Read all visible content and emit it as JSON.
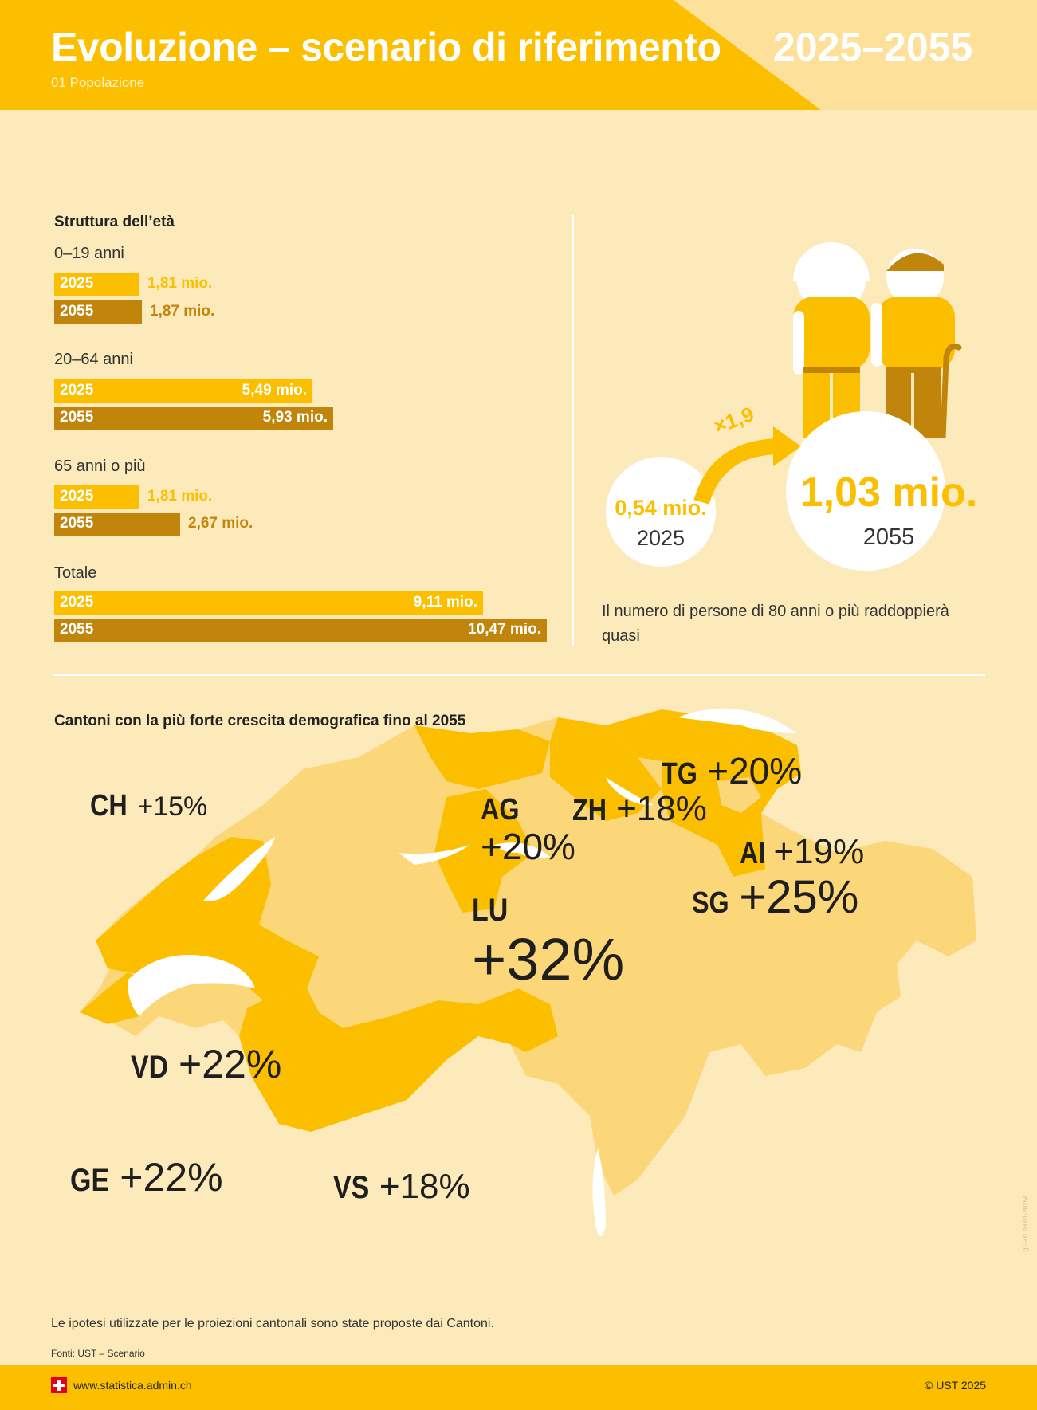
{
  "header": {
    "title": "Evoluzione – scenario di riferimento",
    "year_range": "2025–2055",
    "subtitle": "01 Popolazione"
  },
  "colors": {
    "year_2025": "#fbbf00",
    "year_2055": "#c0850a",
    "background": "#fdeabb",
    "canton_highlight": "#fbbf00",
    "canton_other": "#fcd77a",
    "lakes": "#ffffff"
  },
  "age_structure": {
    "title": "Struttura dell’età",
    "groups": [
      {
        "label": "0–19 anni",
        "label_2025": "2025",
        "value_2025": "1,81 mio.",
        "label_2055": "2055",
        "value_2055": "1,87 mio."
      },
      {
        "label": "20–64 anni",
        "label_2025": "2025",
        "value_2025": "5,49 mio.",
        "label_2055": "2055",
        "value_2055": "5,93 mio."
      },
      {
        "label": "65 anni o più",
        "label_2025": "2025",
        "value_2025": "1,81 mio.",
        "label_2055": "2055",
        "value_2055": "2,67 mio."
      },
      {
        "label": "Totale",
        "label_2025": "2025",
        "value_2025": "9,11 mio.",
        "label_2055": "2055",
        "value_2055": "10,47 mio."
      }
    ]
  },
  "elderly": {
    "value_2025": "0,54 mio.",
    "year_2025": "2025",
    "value_2055": "1,03 mio.",
    "year_2055": "2055",
    "factor": "×1,9",
    "description": "Il numero di persone di 80 anni o più raddoppierà quasi",
    "icon": "elderly-couple-icon"
  },
  "map": {
    "title": "Cantoni con la più forte crescita demografica fino al 2055",
    "national": {
      "code": "CH",
      "pct": "+15%"
    },
    "cantons": [
      {
        "code": "TG",
        "pct": "+20%"
      },
      {
        "code": "AG",
        "pct": "+20%"
      },
      {
        "code": "ZH",
        "pct": "+18%"
      },
      {
        "code": "AI",
        "pct": "+19%"
      },
      {
        "code": "SG",
        "pct": "+25%"
      },
      {
        "code": "LU",
        "pct": "+32%"
      },
      {
        "code": "VD",
        "pct": "+22%"
      },
      {
        "code": "GE",
        "pct": "+22%"
      },
      {
        "code": "VS",
        "pct": "+18%"
      }
    ]
  },
  "chart_data": {
    "type": "bar",
    "title": "Struttura dell’età",
    "categories": [
      "0–19 anni",
      "20–64 anni",
      "65 anni o più",
      "Totale"
    ],
    "series": [
      {
        "name": "2025",
        "values": [
          1.81,
          5.49,
          1.81,
          9.11
        ]
      },
      {
        "name": "2055",
        "values": [
          1.87,
          5.93,
          2.67,
          10.47
        ]
      }
    ],
    "unit": "mio."
  },
  "footer": {
    "note": "Le ipotesi utilizzate per le proiezioni cantonali sono state proposte dai Cantoni.",
    "source": "Fonti: UST – Scenario",
    "site": "www.statistica.admin.ch",
    "copyright": "© UST 2025",
    "code": "gr-i-01.03.01-2025a"
  }
}
